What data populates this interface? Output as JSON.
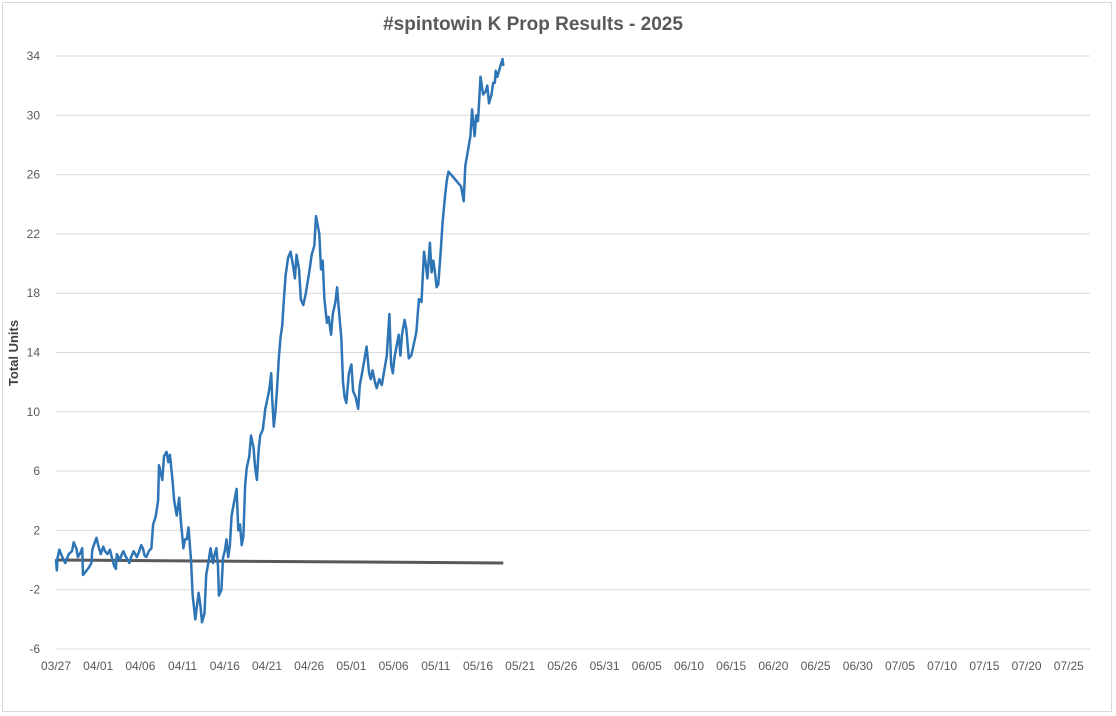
{
  "chart_data": {
    "type": "line",
    "title": "#spintowin K Prop Results - 2025",
    "xlabel": "",
    "ylabel": "Total Units",
    "ylim": [
      -6,
      34
    ],
    "yticks": [
      -6,
      -2,
      2,
      6,
      10,
      14,
      18,
      22,
      26,
      30,
      34
    ],
    "xticks": [
      "03/27",
      "04/01",
      "04/06",
      "04/11",
      "04/16",
      "04/21",
      "04/26",
      "05/01",
      "05/06",
      "05/11",
      "05/16",
      "05/21",
      "05/26",
      "05/31",
      "06/05",
      "06/10",
      "06/15",
      "06/20",
      "06/25",
      "06/30",
      "07/05",
      "07/10",
      "07/15",
      "07/20",
      "07/25"
    ],
    "grid": true,
    "legend": "none",
    "colors": {
      "series": "#2e75b6",
      "baseline": "#595959",
      "grid": "#d9d9d9"
    },
    "series": [
      {
        "values": [
          [
            0,
            0.0
          ],
          [
            0.1,
            -0.7
          ],
          [
            0.2,
            0.2
          ],
          [
            0.4,
            0.7
          ],
          [
            0.6,
            0.4
          ],
          [
            0.9,
            0.0
          ],
          [
            1.1,
            -0.2
          ],
          [
            1.3,
            0.1
          ],
          [
            1.5,
            0.4
          ],
          [
            1.9,
            0.6
          ],
          [
            2.1,
            1.2
          ],
          [
            2.4,
            0.8
          ],
          [
            2.6,
            0.2
          ],
          [
            2.9,
            0.5
          ],
          [
            3.1,
            0.8
          ],
          [
            3.2,
            -1.0
          ],
          [
            3.5,
            -0.8
          ],
          [
            3.9,
            -0.5
          ],
          [
            4.2,
            -0.2
          ],
          [
            4.3,
            0.7
          ],
          [
            4.6,
            1.2
          ],
          [
            4.8,
            1.5
          ],
          [
            5.0,
            1.0
          ],
          [
            5.3,
            0.4
          ],
          [
            5.6,
            0.9
          ],
          [
            5.8,
            0.6
          ],
          [
            6.1,
            0.4
          ],
          [
            6.4,
            0.7
          ],
          [
            6.6,
            0.2
          ],
          [
            6.9,
            -0.4
          ],
          [
            7.1,
            -0.6
          ],
          [
            7.2,
            0.4
          ],
          [
            7.4,
            0.2
          ],
          [
            7.6,
            0.0
          ],
          [
            7.8,
            0.4
          ],
          [
            8.0,
            0.6
          ],
          [
            8.2,
            0.3
          ],
          [
            8.5,
            0.0
          ],
          [
            8.7,
            -0.2
          ],
          [
            8.9,
            0.2
          ],
          [
            9.2,
            0.6
          ],
          [
            9.4,
            0.4
          ],
          [
            9.6,
            0.2
          ],
          [
            9.8,
            0.5
          ],
          [
            10.1,
            1.0
          ],
          [
            10.3,
            0.8
          ],
          [
            10.5,
            0.3
          ],
          [
            10.7,
            0.2
          ],
          [
            11.0,
            0.6
          ],
          [
            11.3,
            0.8
          ],
          [
            11.5,
            2.4
          ],
          [
            11.8,
            2.9
          ],
          [
            12.1,
            4.0
          ],
          [
            12.2,
            6.4
          ],
          [
            12.6,
            5.4
          ],
          [
            12.8,
            7.0
          ],
          [
            13.1,
            7.3
          ],
          [
            13.3,
            6.6
          ],
          [
            13.5,
            7.1
          ],
          [
            13.8,
            5.4
          ],
          [
            14.0,
            4.0
          ],
          [
            14.3,
            3.0
          ],
          [
            14.6,
            4.2
          ],
          [
            14.8,
            2.6
          ],
          [
            15.1,
            0.8
          ],
          [
            15.3,
            1.4
          ],
          [
            15.5,
            1.4
          ],
          [
            15.7,
            2.2
          ],
          [
            16.0,
            0.0
          ],
          [
            16.2,
            -2.4
          ],
          [
            16.5,
            -4.0
          ],
          [
            16.9,
            -2.2
          ],
          [
            17.1,
            -3.0
          ],
          [
            17.3,
            -4.2
          ],
          [
            17.6,
            -3.6
          ],
          [
            17.8,
            -1.0
          ],
          [
            18.1,
            0.0
          ],
          [
            18.3,
            0.8
          ],
          [
            18.6,
            -0.2
          ],
          [
            18.8,
            0.4
          ],
          [
            19.0,
            0.8
          ],
          [
            19.2,
            -0.4
          ],
          [
            19.3,
            -2.4
          ],
          [
            19.6,
            -2.0
          ],
          [
            19.8,
            0.2
          ],
          [
            20.0,
            0.6
          ],
          [
            20.2,
            1.4
          ],
          [
            20.4,
            0.2
          ],
          [
            20.6,
            1.0
          ],
          [
            20.8,
            3.0
          ],
          [
            21.0,
            3.6
          ],
          [
            21.2,
            4.2
          ],
          [
            21.4,
            4.8
          ],
          [
            21.6,
            2.0
          ],
          [
            21.8,
            2.4
          ],
          [
            22.0,
            1.0
          ],
          [
            22.2,
            1.6
          ],
          [
            22.4,
            5.0
          ],
          [
            22.6,
            6.2
          ],
          [
            22.9,
            7.0
          ],
          [
            23.1,
            8.4
          ],
          [
            23.4,
            7.6
          ],
          [
            23.6,
            6.2
          ],
          [
            23.8,
            5.4
          ],
          [
            24.0,
            7.4
          ],
          [
            24.2,
            8.4
          ],
          [
            24.5,
            8.8
          ],
          [
            24.8,
            10.2
          ],
          [
            25.1,
            11.0
          ],
          [
            25.3,
            11.6
          ],
          [
            25.5,
            12.6
          ],
          [
            25.6,
            11.0
          ],
          [
            25.8,
            9.0
          ],
          [
            26.0,
            10.0
          ],
          [
            26.2,
            11.6
          ],
          [
            26.4,
            13.6
          ],
          [
            26.6,
            15.0
          ],
          [
            26.8,
            15.8
          ],
          [
            27.0,
            17.6
          ],
          [
            27.2,
            19.2
          ],
          [
            27.5,
            20.4
          ],
          [
            27.8,
            20.8
          ],
          [
            28.1,
            19.8
          ],
          [
            28.3,
            19.0
          ],
          [
            28.5,
            20.6
          ],
          [
            28.8,
            19.6
          ],
          [
            29.0,
            17.6
          ],
          [
            29.3,
            17.2
          ],
          [
            29.6,
            18.0
          ],
          [
            30.0,
            19.4
          ],
          [
            30.3,
            20.6
          ],
          [
            30.6,
            21.2
          ],
          [
            30.8,
            23.2
          ],
          [
            31.2,
            22.0
          ],
          [
            31.4,
            19.6
          ],
          [
            31.6,
            20.2
          ],
          [
            31.8,
            17.6
          ],
          [
            32.1,
            16.0
          ],
          [
            32.3,
            16.4
          ],
          [
            32.6,
            15.2
          ],
          [
            32.8,
            16.6
          ],
          [
            33.1,
            17.4
          ],
          [
            33.3,
            18.4
          ],
          [
            33.5,
            17.0
          ],
          [
            33.8,
            15.0
          ],
          [
            34.0,
            12.0
          ],
          [
            34.2,
            11.0
          ],
          [
            34.4,
            10.6
          ],
          [
            34.7,
            12.6
          ],
          [
            35.0,
            13.2
          ],
          [
            35.2,
            11.4
          ],
          [
            35.5,
            11.0
          ],
          [
            35.8,
            10.2
          ],
          [
            36.0,
            11.8
          ],
          [
            36.2,
            12.4
          ],
          [
            36.5,
            13.4
          ],
          [
            36.8,
            14.4
          ],
          [
            37.1,
            12.6
          ],
          [
            37.3,
            12.2
          ],
          [
            37.5,
            12.8
          ],
          [
            37.8,
            12.0
          ],
          [
            38.0,
            11.6
          ],
          [
            38.3,
            12.2
          ],
          [
            38.6,
            11.8
          ],
          [
            38.9,
            12.8
          ],
          [
            39.2,
            13.8
          ],
          [
            39.5,
            16.6
          ],
          [
            39.7,
            13.2
          ],
          [
            39.9,
            12.6
          ],
          [
            40.1,
            13.6
          ],
          [
            40.4,
            14.6
          ],
          [
            40.6,
            15.2
          ],
          [
            40.8,
            13.8
          ],
          [
            41.0,
            15.2
          ],
          [
            41.3,
            16.2
          ],
          [
            41.5,
            15.6
          ],
          [
            41.8,
            13.6
          ],
          [
            42.1,
            13.8
          ],
          [
            42.4,
            14.6
          ],
          [
            42.7,
            15.4
          ],
          [
            43.0,
            17.6
          ],
          [
            43.3,
            17.4
          ],
          [
            43.6,
            20.8
          ],
          [
            43.8,
            20.0
          ],
          [
            44.0,
            19.0
          ],
          [
            44.3,
            21.4
          ],
          [
            44.5,
            19.4
          ],
          [
            44.7,
            20.2
          ],
          [
            44.9,
            19.4
          ],
          [
            45.1,
            18.4
          ],
          [
            45.3,
            18.6
          ],
          [
            45.6,
            21.0
          ],
          [
            45.8,
            22.8
          ],
          [
            46.1,
            24.6
          ],
          [
            46.3,
            25.6
          ],
          [
            46.5,
            26.2
          ],
          [
            46.8,
            26.0
          ],
          [
            47.4,
            25.6
          ],
          [
            48.0,
            25.2
          ],
          [
            48.3,
            24.2
          ],
          [
            48.5,
            26.6
          ],
          [
            48.8,
            27.6
          ],
          [
            49.1,
            28.6
          ],
          [
            49.3,
            30.4
          ],
          [
            49.6,
            28.6
          ],
          [
            49.8,
            30.0
          ],
          [
            50.0,
            29.6
          ],
          [
            50.3,
            32.6
          ],
          [
            50.6,
            31.4
          ],
          [
            50.9,
            31.6
          ],
          [
            51.1,
            32.0
          ],
          [
            51.3,
            30.8
          ],
          [
            51.6,
            31.4
          ],
          [
            51.8,
            32.2
          ],
          [
            52.0,
            32.2
          ],
          [
            52.1,
            33.0
          ],
          [
            52.3,
            32.6
          ],
          [
            52.6,
            33.2
          ],
          [
            52.9,
            33.8
          ],
          [
            53.0,
            33.4
          ]
        ]
      },
      {
        "values": [
          [
            0,
            0.0
          ],
          [
            53.0,
            -0.2
          ]
        ]
      }
    ]
  }
}
